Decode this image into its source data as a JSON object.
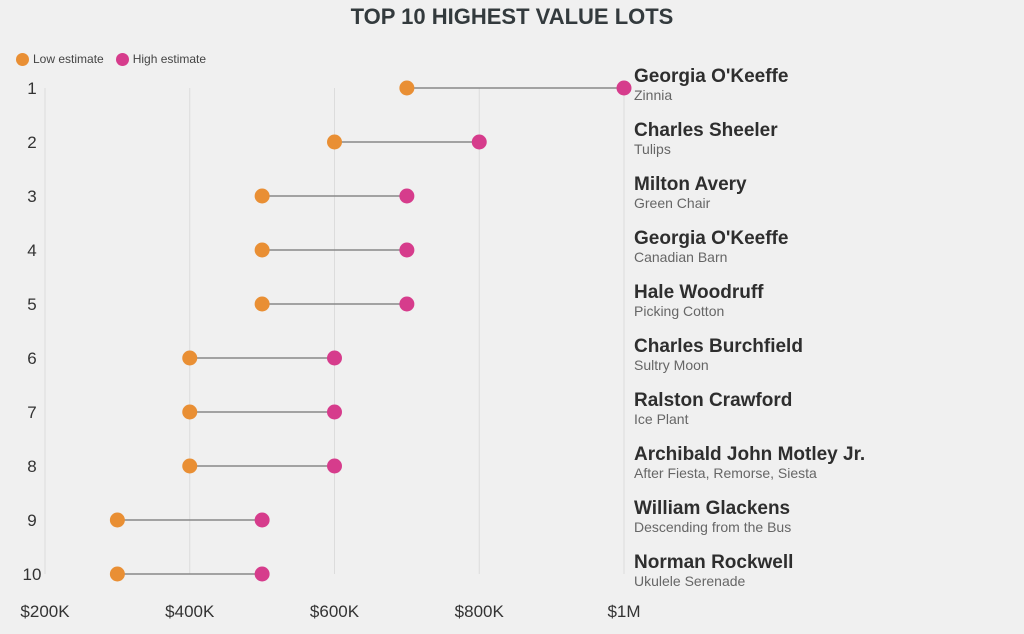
{
  "chart_data": {
    "type": "dumbbell",
    "title": "TOP 10 HIGHEST VALUE LOTS",
    "xlabel": "",
    "ylabel": "",
    "xlim": [
      200000,
      1000000
    ],
    "x_ticks": [
      {
        "value": 200000,
        "label": "$200K"
      },
      {
        "value": 400000,
        "label": "$400K"
      },
      {
        "value": 600000,
        "label": "$600K"
      },
      {
        "value": 800000,
        "label": "$800K"
      },
      {
        "value": 1000000,
        "label": "$1M"
      }
    ],
    "grid": true,
    "legend": {
      "placement": "top-left",
      "entries": [
        {
          "name": "Low estimate",
          "color": "#e98f34"
        },
        {
          "name": "High estimate",
          "color": "#d63c8c"
        }
      ]
    },
    "series": [
      {
        "name": "Low estimate",
        "color": "#e98f34",
        "values": [
          700000,
          600000,
          500000,
          500000,
          500000,
          400000,
          400000,
          400000,
          300000,
          300000
        ]
      },
      {
        "name": "High estimate",
        "color": "#d63c8c",
        "values": [
          1000000,
          800000,
          700000,
          700000,
          700000,
          600000,
          600000,
          600000,
          500000,
          500000
        ]
      }
    ],
    "categories": [
      "1",
      "2",
      "3",
      "4",
      "5",
      "6",
      "7",
      "8",
      "9",
      "10"
    ],
    "lots": [
      {
        "rank": "1",
        "artist": "Georgia O'Keeffe",
        "work": "Zinnia"
      },
      {
        "rank": "2",
        "artist": "Charles Sheeler",
        "work": "Tulips"
      },
      {
        "rank": "3",
        "artist": "Milton Avery",
        "work": "Green Chair"
      },
      {
        "rank": "4",
        "artist": "Georgia O'Keeffe",
        "work": "Canadian Barn"
      },
      {
        "rank": "5",
        "artist": "Hale Woodruff",
        "work": "Picking Cotton"
      },
      {
        "rank": "6",
        "artist": "Charles Burchfield",
        "work": "Sultry Moon"
      },
      {
        "rank": "7",
        "artist": "Ralston Crawford",
        "work": "Ice Plant"
      },
      {
        "rank": "8",
        "artist": "Archibald John Motley Jr.",
        "work": "After Fiesta, Remorse, Siesta"
      },
      {
        "rank": "9",
        "artist": "William Glackens",
        "work": "Descending from the Bus"
      },
      {
        "rank": "10",
        "artist": "Norman Rockwell",
        "work": "Ukulele Serenade"
      }
    ]
  }
}
